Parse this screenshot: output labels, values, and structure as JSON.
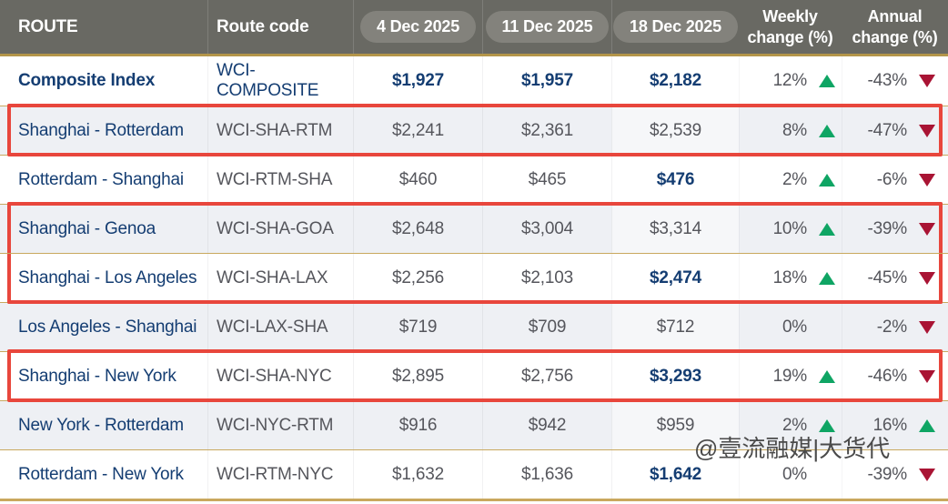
{
  "colors": {
    "header_bg": "#696963",
    "pill_bg": "#83827c",
    "gold_line": "#b3954a",
    "row_divider": "#c9a85e",
    "shaded_row": "#eef0f4",
    "navy_text": "#143d72",
    "gray_text": "#55565c",
    "up_green": "#0fa564",
    "down_red": "#a91434",
    "highlight_red": "#e8463c",
    "watermark_gray": "#4a4a4a"
  },
  "header": {
    "route": "ROUTE",
    "route_code": "Route code",
    "dates": [
      "4 Dec 2025",
      "11 Dec 2025",
      "18 Dec 2025"
    ],
    "weekly_change": [
      "Weekly",
      "change (%)"
    ],
    "annual_change": [
      "Annual",
      "change (%)"
    ]
  },
  "watermark": {
    "text": "@壹流融媒|大货代"
  },
  "table": {
    "rows": [
      {
        "route": "Composite Index",
        "code": "WCI-COMPOSITE",
        "values": [
          "$1,927",
          "$1,957",
          "$2,182"
        ],
        "emphasis": [
          true,
          true,
          true
        ],
        "weekly": {
          "value": "12%",
          "dir": "up"
        },
        "annual": {
          "value": "-43%",
          "dir": "down"
        },
        "shaded": false,
        "box": null,
        "index_row": true
      },
      {
        "route": "Shanghai - Rotterdam",
        "code": "WCI-SHA-RTM",
        "values": [
          "$2,241",
          "$2,361",
          "$2,539"
        ],
        "emphasis": [
          false,
          false,
          false
        ],
        "weekly": {
          "value": "8%",
          "dir": "up"
        },
        "annual": {
          "value": "-47%",
          "dir": "down"
        },
        "shaded": true,
        "box": "solo",
        "index_row": false
      },
      {
        "route": "Rotterdam - Shanghai",
        "code": "WCI-RTM-SHA",
        "values": [
          "$460",
          "$465",
          "$476"
        ],
        "emphasis": [
          false,
          false,
          true
        ],
        "weekly": {
          "value": "2%",
          "dir": "up"
        },
        "annual": {
          "value": "-6%",
          "dir": "down"
        },
        "shaded": false,
        "box": null,
        "index_row": false
      },
      {
        "route": "Shanghai - Genoa",
        "code": "WCI-SHA-GOA",
        "values": [
          "$2,648",
          "$3,004",
          "$3,314"
        ],
        "emphasis": [
          false,
          false,
          false
        ],
        "weekly": {
          "value": "10%",
          "dir": "up"
        },
        "annual": {
          "value": "-39%",
          "dir": "down"
        },
        "shaded": true,
        "box": "start",
        "index_row": false
      },
      {
        "route": "Shanghai - Los Angeles",
        "code": "WCI-SHA-LAX",
        "values": [
          "$2,256",
          "$2,103",
          "$2,474"
        ],
        "emphasis": [
          false,
          false,
          true
        ],
        "weekly": {
          "value": "18%",
          "dir": "up"
        },
        "annual": {
          "value": "-45%",
          "dir": "down"
        },
        "shaded": false,
        "box": "end",
        "index_row": false
      },
      {
        "route": "Los Angeles - Shanghai",
        "code": "WCI-LAX-SHA",
        "values": [
          "$719",
          "$709",
          "$712"
        ],
        "emphasis": [
          false,
          false,
          false
        ],
        "weekly": {
          "value": "0%",
          "dir": "none"
        },
        "annual": {
          "value": "-2%",
          "dir": "down"
        },
        "shaded": true,
        "box": null,
        "index_row": false
      },
      {
        "route": "Shanghai - New York",
        "code": "WCI-SHA-NYC",
        "values": [
          "$2,895",
          "$2,756",
          "$3,293"
        ],
        "emphasis": [
          false,
          false,
          true
        ],
        "weekly": {
          "value": "19%",
          "dir": "up"
        },
        "annual": {
          "value": "-46%",
          "dir": "down"
        },
        "shaded": false,
        "box": "solo",
        "index_row": false
      },
      {
        "route": "New York - Rotterdam",
        "code": "WCI-NYC-RTM",
        "values": [
          "$916",
          "$942",
          "$959"
        ],
        "emphasis": [
          false,
          false,
          false
        ],
        "weekly": {
          "value": "2%",
          "dir": "up"
        },
        "annual": {
          "value": "16%",
          "dir": "up"
        },
        "shaded": true,
        "box": null,
        "index_row": false
      },
      {
        "route": "Rotterdam - New York",
        "code": "WCI-RTM-NYC",
        "values": [
          "$1,632",
          "$1,636",
          "$1,642"
        ],
        "emphasis": [
          false,
          false,
          true
        ],
        "weekly": {
          "value": "0%",
          "dir": "none"
        },
        "annual": {
          "value": "-39%",
          "dir": "down"
        },
        "shaded": false,
        "box": null,
        "index_row": false
      }
    ]
  },
  "chart_data": {
    "type": "table",
    "title": "World Container Index (WCI) spot freight rates, USD per 40ft container",
    "columns": [
      "ROUTE",
      "Route code",
      "4 Dec 2025",
      "11 Dec 2025",
      "18 Dec 2025",
      "Weekly change (%)",
      "Annual change (%)"
    ],
    "rows": [
      [
        "Composite Index",
        "WCI-COMPOSITE",
        1927,
        1957,
        2182,
        "12%",
        "-43%"
      ],
      [
        "Shanghai - Rotterdam",
        "WCI-SHA-RTM",
        2241,
        2361,
        2539,
        "8%",
        "-47%"
      ],
      [
        "Rotterdam - Shanghai",
        "WCI-RTM-SHA",
        460,
        465,
        476,
        "2%",
        "-6%"
      ],
      [
        "Shanghai - Genoa",
        "WCI-SHA-GOA",
        2648,
        3004,
        3314,
        "10%",
        "-39%"
      ],
      [
        "Shanghai - Los Angeles",
        "WCI-SHA-LAX",
        2256,
        2103,
        2474,
        "18%",
        "-45%"
      ],
      [
        "Los Angeles - Shanghai",
        "WCI-LAX-SHA",
        719,
        709,
        712,
        "0%",
        "-2%"
      ],
      [
        "Shanghai - New York",
        "WCI-SHA-NYC",
        2895,
        2756,
        3293,
        "19%",
        "-46%"
      ],
      [
        "New York - Rotterdam",
        "WCI-NYC-RTM",
        916,
        942,
        959,
        "2%",
        "16%"
      ],
      [
        "Rotterdam - New York",
        "WCI-RTM-NYC",
        1632,
        1636,
        1642,
        "0%",
        "-39%"
      ]
    ],
    "annotations": "Red highlight boxes drawn around rows: Shanghai - Rotterdam; Shanghai - Genoa + Shanghai - Los Angeles (one box); Shanghai - New York"
  }
}
